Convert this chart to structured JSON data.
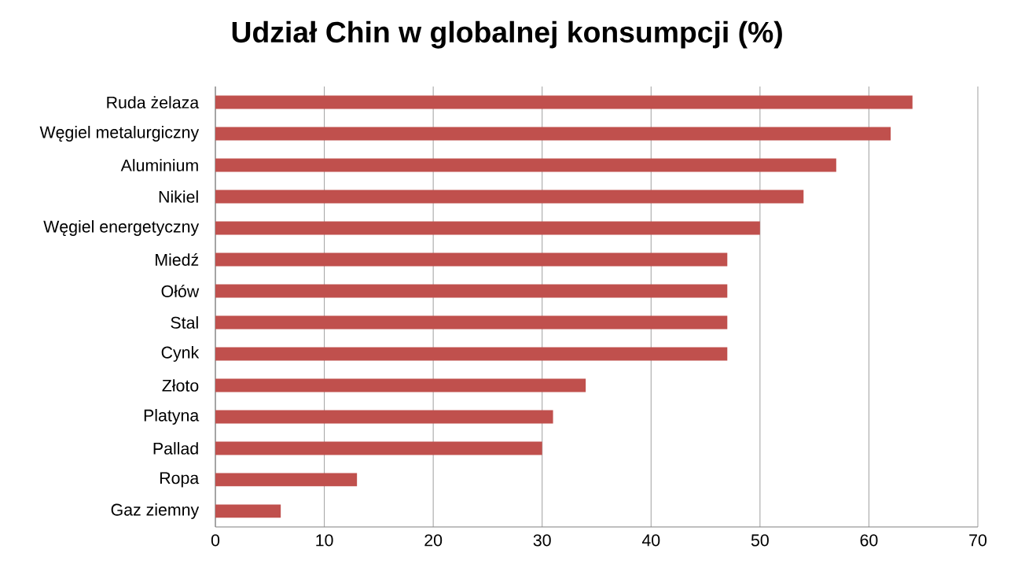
{
  "chart_data": {
    "type": "bar",
    "orientation": "horizontal",
    "title": "Udział Chin w globalnej konsumpcji (%)",
    "categories": [
      "Ruda żelaza",
      "Węgiel metalurgiczny",
      "Aluminium",
      "Nikiel",
      "Węgiel energetyczny",
      "Miedź",
      "Ołów",
      "Stal",
      "Cynk",
      "Złoto",
      "Platyna",
      "Pallad",
      "Ropa",
      "Gaz ziemny"
    ],
    "values": [
      64,
      62,
      57,
      54,
      50,
      47,
      47,
      47,
      47,
      34,
      31,
      30,
      13,
      6
    ],
    "color": "#c0504d",
    "xlim": [
      0,
      70
    ],
    "xticks": [
      0,
      10,
      20,
      30,
      40,
      50,
      60,
      70
    ],
    "grid": "x"
  }
}
